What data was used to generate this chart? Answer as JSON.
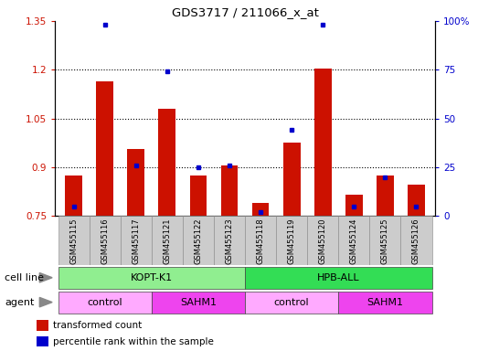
{
  "title": "GDS3717 / 211066_x_at",
  "samples": [
    "GSM455115",
    "GSM455116",
    "GSM455117",
    "GSM455121",
    "GSM455122",
    "GSM455123",
    "GSM455118",
    "GSM455119",
    "GSM455120",
    "GSM455124",
    "GSM455125",
    "GSM455126"
  ],
  "red_values": [
    0.875,
    1.165,
    0.955,
    1.08,
    0.875,
    0.905,
    0.79,
    0.975,
    1.205,
    0.815,
    0.875,
    0.845
  ],
  "blue_percentiles": [
    5,
    98,
    26,
    74,
    25,
    26,
    2,
    44,
    98,
    5,
    20,
    5
  ],
  "ylim_left": [
    0.75,
    1.35
  ],
  "ylim_right": [
    0,
    100
  ],
  "yticks_left": [
    0.75,
    0.9,
    1.05,
    1.2,
    1.35
  ],
  "yticks_right": [
    0,
    25,
    50,
    75,
    100
  ],
  "ytick_labels_left": [
    "0.75",
    "0.9",
    "1.05",
    "1.2",
    "1.35"
  ],
  "ytick_labels_right": [
    "0",
    "25",
    "50",
    "75",
    "100%"
  ],
  "dotted_lines": [
    0.9,
    1.05,
    1.2
  ],
  "cell_line_groups": [
    {
      "label": "KOPT-K1",
      "start": 0,
      "end": 6,
      "color": "#90EE90"
    },
    {
      "label": "HPB-ALL",
      "start": 6,
      "end": 12,
      "color": "#33DD55"
    }
  ],
  "agent_groups": [
    {
      "label": "control",
      "start": 0,
      "end": 3,
      "color": "#FFAAFF"
    },
    {
      "label": "SAHM1",
      "start": 3,
      "end": 6,
      "color": "#EE44EE"
    },
    {
      "label": "control",
      "start": 6,
      "end": 9,
      "color": "#FFAAFF"
    },
    {
      "label": "SAHM1",
      "start": 9,
      "end": 12,
      "color": "#EE44EE"
    }
  ],
  "bar_color": "#CC1100",
  "dot_color": "#0000CC",
  "bar_width": 0.55,
  "tick_bg_color": "#CCCCCC",
  "legend_red": "transformed count",
  "legend_blue": "percentile rank within the sample",
  "cell_line_label": "cell line",
  "agent_label": "agent",
  "baseline": 0.75
}
